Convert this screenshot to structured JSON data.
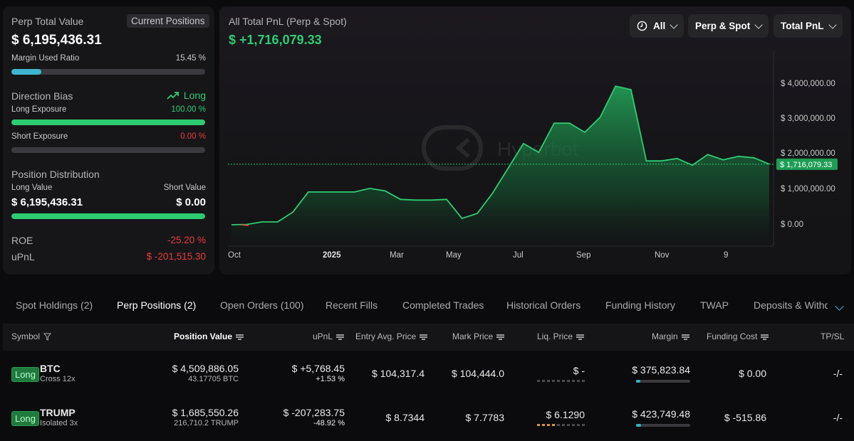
{
  "left": {
    "perp_total_label": "Perp Total Value",
    "current_positions": "Current Positions",
    "perp_total_value": "$ 6,195,436.31",
    "margin_used_label": "Margin Used Ratio",
    "margin_used_value": "15.45 %",
    "margin_used_pct": 15.45,
    "direction_bias_label": "Direction Bias",
    "direction_bias_value": "Long",
    "long_exposure_label": "Long Exposure",
    "long_exposure_value": "100.00 %",
    "long_exposure_pct": 100,
    "short_exposure_label": "Short Exposure",
    "short_exposure_value": "0.00 %",
    "short_exposure_pct": 0,
    "position_dist_label": "Position Distribution",
    "long_value_label": "Long Value",
    "short_value_label": "Short Value",
    "long_value": "$ 6,195,436.31",
    "short_value": "$ 0.00",
    "long_share_pct": 100,
    "roe_label": "ROE",
    "roe_value": "-25.20 %",
    "upnl_label": "uPnL",
    "upnl_value": "$ -201,515.30"
  },
  "chart": {
    "title": "All Total PnL (Perp & Spot)",
    "total_value": "$ +1,716,079.33",
    "filters": {
      "time": "All",
      "scope": "Perp & Spot",
      "metric": "Total PnL"
    },
    "watermark": "Hyperbot",
    "current_label": "$ 1,716,079.33",
    "colors": {
      "line": "#2ecc71",
      "accent": "#2ecc71"
    }
  },
  "chart_data": {
    "type": "area",
    "title": "All Total PnL (Perp & Spot)",
    "x_ticks": [
      "Oct",
      "2025",
      "Mar",
      "May",
      "Jul",
      "Sep",
      "Nov",
      "9"
    ],
    "y_ticks": [
      "$ 4,000,000.00",
      "$ 3,000,000.00",
      "$ 2,000,000.00",
      "$ 1,000,000.00",
      "$ 0.00"
    ],
    "ylim": [
      -100000,
      4800000
    ],
    "series": [
      {
        "points": [
          [
            "Oct",
            0
          ],
          [
            "Oct+",
            10000
          ],
          [
            "Oct++",
            80000
          ],
          [
            "Nov'24",
            80000
          ],
          [
            "Nov'24+",
            360000
          ],
          [
            "Nov'24++",
            930000
          ],
          [
            "Dec'24",
            930000
          ],
          [
            "Dec'24+",
            930000
          ],
          [
            "Jan'25",
            930000
          ],
          [
            "Jan'25+",
            1030000
          ],
          [
            "Jan'25++",
            960000
          ],
          [
            "Feb'25",
            720000
          ],
          [
            "Mar'25",
            700000
          ],
          [
            "Apr'25",
            700000
          ],
          [
            "Apr'25+",
            720000
          ],
          [
            "Apr'25++",
            180000
          ],
          [
            "May'25",
            320000
          ],
          [
            "May'25+",
            900000
          ],
          [
            "Jun'25",
            1600000
          ],
          [
            "Jun'25+",
            2300000
          ],
          [
            "Jun'25++",
            2050000
          ],
          [
            "Jul'25",
            2880000
          ],
          [
            "Aug'25",
            2880000
          ],
          [
            "Aug'25+",
            2620000
          ],
          [
            "Sep'25",
            3050000
          ],
          [
            "Sep'25+",
            3930000
          ],
          [
            "Sep'25++",
            3830000
          ],
          [
            "Oct'25",
            1810000
          ],
          [
            "Oct'25+",
            1810000
          ],
          [
            "Nov'25",
            1880000
          ],
          [
            "Nov'25+",
            1690000
          ],
          [
            "Nov'25++",
            1990000
          ],
          [
            "Dec'25",
            1840000
          ],
          [
            "Dec'25+",
            1940000
          ],
          [
            "Dec'25++",
            1900000
          ],
          [
            "9",
            1720000
          ]
        ]
      }
    ],
    "current_value": 1716079.33
  },
  "tabs": [
    "Spot Holdings (2)",
    "Perp Positions (2)",
    "Open Orders (100)",
    "Recent Fills",
    "Completed Trades",
    "Historical Orders",
    "Funding History",
    "TWAP",
    "Deposits & Withd"
  ],
  "table": {
    "headers": [
      "Symbol",
      "Position Value",
      "uPnL",
      "Entry Avg. Price",
      "Mark Price",
      "Liq. Price",
      "Margin",
      "Funding Cost",
      "TP/SL"
    ],
    "rows": [
      {
        "side": "Long",
        "symbol": "BTC",
        "mode": "Cross 12x",
        "position_value": "$ 4,509,886.05",
        "position_size": "43.17705 BTC",
        "upnl": "$ +5,768.45",
        "upnl_pct": "+1.53 %",
        "entry": "$ 104,317.4",
        "mark": "$ 104,444.0",
        "liq": "$ -",
        "margin": "$ 375,823.84",
        "margin_pct": 8,
        "funding": "$ 0.00",
        "tpsl": "-/-"
      },
      {
        "side": "Long",
        "symbol": "TRUMP",
        "mode": "Isolated 3x",
        "position_value": "$ 1,685,550.26",
        "position_size": "216,710.2 TRUMP",
        "upnl": "$ -207,283.75",
        "upnl_pct": "-48.92 %",
        "entry": "$ 8.7344",
        "mark": "$ 7.7783",
        "liq": "$ 6.1290",
        "margin": "$ 423,749.48",
        "margin_pct": 9,
        "funding": "$ -515.86",
        "tpsl": "-/-"
      }
    ]
  }
}
